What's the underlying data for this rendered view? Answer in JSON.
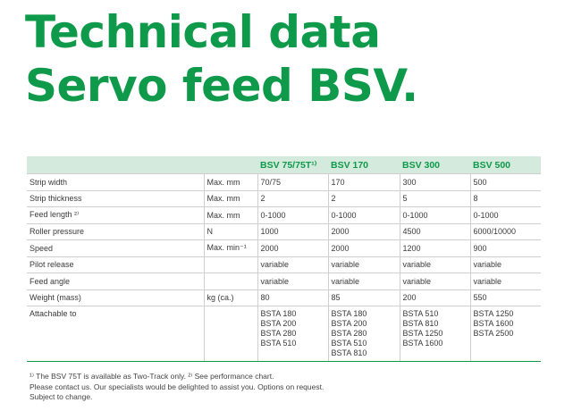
{
  "title": {
    "line1": "Technical data",
    "line2": "Servo feed BSV."
  },
  "table": {
    "headers": [
      "",
      "",
      "BSV 75/75T¹⁾",
      "BSV 170",
      "BSV 300",
      "BSV 500"
    ],
    "rows": [
      {
        "label": "Strip width",
        "unit": "Max. mm",
        "values": [
          "70/75",
          "170",
          "300",
          "500"
        ]
      },
      {
        "label": "Strip thickness",
        "unit": "Max. mm",
        "values": [
          "2",
          "2",
          "5",
          "8"
        ]
      },
      {
        "label": "Feed length ²⁾",
        "unit": "Max. mm",
        "values": [
          "0-1000",
          "0-1000",
          "0-1000",
          "0-1000"
        ]
      },
      {
        "label": "Roller pressure",
        "unit": "N",
        "values": [
          "1000",
          "2000",
          "4500",
          "6000/10000"
        ]
      },
      {
        "label": "Speed",
        "unit": "Max. min⁻¹",
        "values": [
          "2000",
          "2000",
          "1200",
          "900"
        ]
      },
      {
        "label": "Pilot release",
        "unit": "",
        "values": [
          "variable",
          "variable",
          "variable",
          "variable"
        ]
      },
      {
        "label": "Feed angle",
        "unit": "",
        "values": [
          "variable",
          "variable",
          "variable",
          "variable"
        ]
      },
      {
        "label": "Weight (mass)",
        "unit": "kg (ca.)",
        "values": [
          "80",
          "85",
          "200",
          "550"
        ]
      }
    ],
    "attachable": {
      "label": "Attachable to",
      "values": [
        [
          "BSTA 180",
          "BSTA 200",
          "BSTA 280",
          "BSTA 510"
        ],
        [
          "BSTA 180",
          "BSTA 200",
          "BSTA 280",
          "BSTA 510",
          "BSTA 810"
        ],
        [
          "BSTA 510",
          "BSTA 810",
          "BSTA 1250",
          "BSTA 1600"
        ],
        [
          "BSTA 1250",
          "BSTA 1600",
          "BSTA 2500"
        ]
      ]
    }
  },
  "notes": {
    "line1": "¹⁾ The BSV 75T is available as Two-Track only. ²⁾ See performance chart.",
    "line2": "Please contact us. Our specialists would be delighted to assist you. Options on request.",
    "line3": "Subject to change."
  }
}
